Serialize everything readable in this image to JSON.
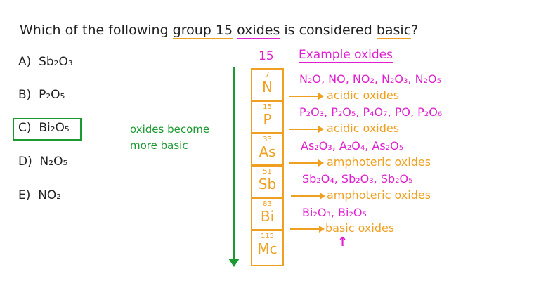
{
  "question": {
    "before": "Which of the following ",
    "group": "group 15",
    "space": " ",
    "oxides": "oxides",
    "middle": " is considered ",
    "basic": "basic",
    "end": "?"
  },
  "options": [
    {
      "label": "A)",
      "formula": "Sb₂O₃"
    },
    {
      "label": "B)",
      "formula": "P₂O₅"
    },
    {
      "label": "C)",
      "formula": "Bi₂O₅",
      "selected": true
    },
    {
      "label": "D)",
      "formula": "N₂O₅"
    },
    {
      "label": "E)",
      "formula": "NO₂"
    }
  ],
  "trend": {
    "line1": "oxides become",
    "line2": "more basic"
  },
  "group_number": "15",
  "examples_heading": "Example oxides",
  "elements": [
    {
      "number": "7",
      "symbol": "N",
      "oxides": "N₂O, NO, NO₂, N₂O₃, N₂O₅",
      "type": "acidic oxides"
    },
    {
      "number": "15",
      "symbol": "P",
      "oxides": "P₂O₃, P₂O₅, P₄O₇, PO, P₂O₆",
      "type": "acidic oxides"
    },
    {
      "number": "33",
      "symbol": "As",
      "oxides": "As₂O₃, A₂O₄, As₂O₅",
      "type": "amphoteric oxides"
    },
    {
      "number": "51",
      "symbol": "Sb",
      "oxides": "Sb₂O₄, Sb₂O₃, Sb₂O₅",
      "type": "amphoteric oxides"
    },
    {
      "number": "83",
      "symbol": "Bi",
      "oxides": "Bi₂O₃, Bi₂O₅",
      "type": "basic oxides"
    },
    {
      "number": "115",
      "symbol": "Mc"
    }
  ],
  "colors": {
    "pink": "#e020d0",
    "orange": "#f0a020",
    "green": "#1a9a30"
  }
}
